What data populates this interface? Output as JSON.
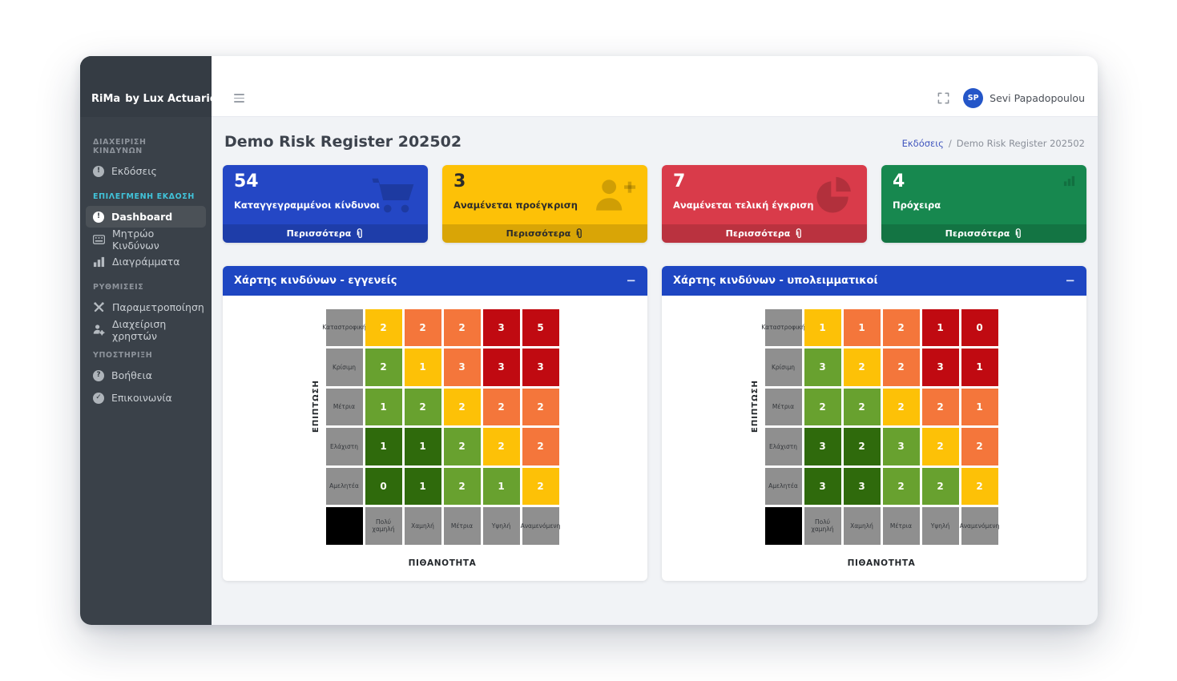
{
  "brand": {
    "prefix": "RiMa",
    "suffix": "by Lux Actuaries"
  },
  "topbar": {
    "user": {
      "initials": "SP",
      "name": "Sevi Papadopoulou"
    }
  },
  "page": {
    "title": "Demo Risk Register 202502",
    "breadcrumb": {
      "root": "Εκδόσεις",
      "separator": "/",
      "current": "Demo Risk Register 202502"
    }
  },
  "sidebar": {
    "sections": [
      {
        "label": "ΔΙΑΧΕΙΡΙΣΗ ΚΙΝΔΥΝΩΝ",
        "accent": false,
        "items": [
          {
            "label": "Εκδόσεις",
            "icon": "info-circle",
            "active": false
          }
        ]
      },
      {
        "label": "ΕΠΙΛΕΓΜΕΝΗ ΕΚΔΟΣΗ",
        "accent": true,
        "items": [
          {
            "label": "Dashboard",
            "icon": "info-circle",
            "active": true
          },
          {
            "label": "Μητρώο Κινδύνων",
            "icon": "table",
            "active": false
          },
          {
            "label": "Διαγράμματα",
            "icon": "bar-chart",
            "active": false
          }
        ]
      },
      {
        "label": "ΡΥΘΜΙΣΕΙΣ",
        "accent": false,
        "items": [
          {
            "label": "Παραμετροποίηση",
            "icon": "tools",
            "active": false
          },
          {
            "label": "Διαχείριση χρηστών",
            "icon": "user-gear",
            "active": false
          }
        ]
      },
      {
        "label": "ΥΠΟΣΤΗΡΙΞΗ",
        "accent": false,
        "items": [
          {
            "label": "Βοήθεια",
            "icon": "help-circle",
            "active": false
          },
          {
            "label": "Επικοινωνία",
            "icon": "contact-circle",
            "active": false
          }
        ]
      }
    ]
  },
  "cards": [
    {
      "value": "54",
      "label": "Καταγγεγραμμένοι κίνδυνοι",
      "icon": "cart",
      "bg": "#2447c5",
      "text": "#ffffff",
      "footer_label": "Περισσότερα"
    },
    {
      "value": "3",
      "label": "Αναμένεται προέγκριση",
      "icon": "user-plus",
      "bg": "#fdc107",
      "text": "#2b2b2b",
      "footer_label": "Περισσότερα"
    },
    {
      "value": "7",
      "label": "Αναμένεται τελική έγκριση",
      "icon": "pie-chart",
      "bg": "#d93b4a",
      "text": "#ffffff",
      "footer_label": "Περισσότερα"
    },
    {
      "value": "4",
      "label": "Πρόχειρα",
      "icon": "bar-chart",
      "bg": "#17884f",
      "text": "#ffffff",
      "footer_label": "Περισσότερα"
    }
  ],
  "colors": {
    "panel_header_blue": "#1e46c2",
    "accent_teal": "#41c4da",
    "avatar_blue": "#2456c8",
    "link_blue": "#4055be"
  },
  "heatmap_palette": {
    "y": "#fdc107",
    "o": "#f4763b",
    "r": "#c00a11",
    "g": "#68a12f",
    "dg": "#2f6a0c",
    "label_bg": "#8f8f8f",
    "corner_bg": "#000000"
  },
  "chart_data": [
    {
      "type": "heatmap",
      "title": "Χάρτης κινδύνων - εγγενείς",
      "collapse_label": "−",
      "xlabel": "ΠΙΘΑΝΟΤΗΤΑ",
      "ylabel": "ΕΠΙΠΤΩΣΗ",
      "x_categories": [
        "Πολύ χαμηλή",
        "Χαμηλή",
        "Μέτρια",
        "Υψηλή",
        "Αναμενόμενη"
      ],
      "y_categories": [
        "Καταστροφική",
        "Κρίσιμη",
        "Μέτρια",
        "Ελάχιστη",
        "Αμελητέα"
      ],
      "values": [
        [
          2,
          2,
          2,
          3,
          5
        ],
        [
          2,
          1,
          3,
          3,
          3
        ],
        [
          1,
          2,
          2,
          2,
          2
        ],
        [
          1,
          1,
          2,
          2,
          2
        ],
        [
          0,
          1,
          2,
          1,
          2
        ]
      ],
      "cell_colors": [
        [
          "y",
          "o",
          "o",
          "r",
          "r"
        ],
        [
          "g",
          "y",
          "o",
          "r",
          "r"
        ],
        [
          "g",
          "g",
          "y",
          "o",
          "o"
        ],
        [
          "dg",
          "dg",
          "g",
          "y",
          "o"
        ],
        [
          "dg",
          "dg",
          "g",
          "g",
          "y"
        ]
      ]
    },
    {
      "type": "heatmap",
      "title": "Χάρτης κινδύνων - υπολειμματικοί",
      "collapse_label": "−",
      "xlabel": "ΠΙΘΑΝΟΤΗΤΑ",
      "ylabel": "ΕΠΙΠΤΩΣΗ",
      "x_categories": [
        "Πολύ χαμηλή",
        "Χαμηλή",
        "Μέτρια",
        "Υψηλή",
        "Αναμενόμενη"
      ],
      "y_categories": [
        "Καταστροφική",
        "Κρίσιμη",
        "Μέτρια",
        "Ελάχιστη",
        "Αμελητέα"
      ],
      "values": [
        [
          1,
          1,
          2,
          1,
          0
        ],
        [
          3,
          2,
          2,
          3,
          1
        ],
        [
          2,
          2,
          2,
          2,
          1
        ],
        [
          3,
          2,
          3,
          2,
          2
        ],
        [
          3,
          3,
          2,
          2,
          2
        ]
      ],
      "cell_colors": [
        [
          "y",
          "o",
          "o",
          "r",
          "r"
        ],
        [
          "g",
          "y",
          "o",
          "r",
          "r"
        ],
        [
          "g",
          "g",
          "y",
          "o",
          "o"
        ],
        [
          "dg",
          "dg",
          "g",
          "y",
          "o"
        ],
        [
          "dg",
          "dg",
          "g",
          "g",
          "y"
        ]
      ]
    }
  ]
}
